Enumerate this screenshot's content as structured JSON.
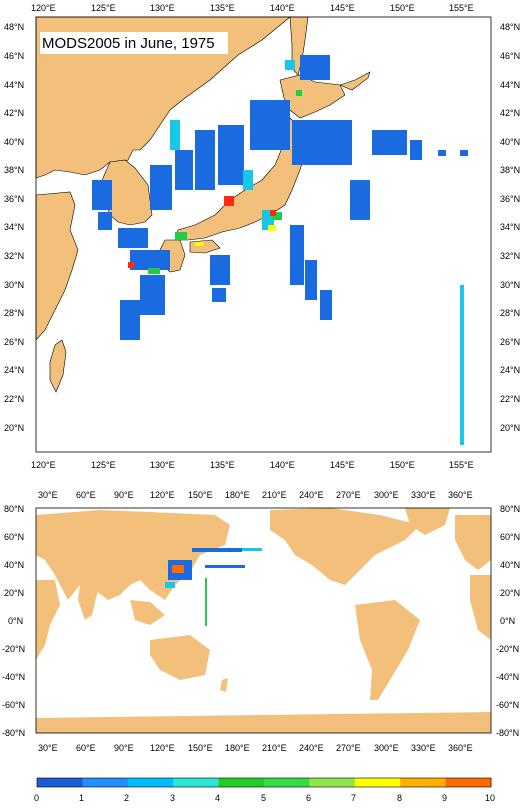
{
  "title": "MODS2005 in June, 1975",
  "regional_map": {
    "top_lon_labels": [
      "120°E",
      "125°E",
      "130°E",
      "135°E",
      "140°E",
      "145°E",
      "150°E",
      "155°E"
    ],
    "bottom_lon_labels": [
      "120°E",
      "125°E",
      "130°E",
      "135°E",
      "140°E",
      "145°E",
      "150°E",
      "155°E"
    ],
    "lat_labels": [
      "48°N",
      "46°N",
      "44°N",
      "42°N",
      "40°N",
      "38°N",
      "36°N",
      "34°N",
      "32°N",
      "30°N",
      "28°N",
      "26°N",
      "24°N",
      "22°N",
      "20°N"
    ]
  },
  "global_map": {
    "lon_labels": [
      "30°E",
      "60°E",
      "90°E",
      "120°E",
      "150°E",
      "180°E",
      "210°E",
      "240°E",
      "270°E",
      "300°E",
      "330°E",
      "360°E"
    ],
    "lat_labels": [
      "80°N",
      "60°N",
      "40°N",
      "20°N",
      "0°N",
      "-20°N",
      "-40°N",
      "-60°N",
      "-80°N"
    ]
  },
  "colorbar": {
    "labels": [
      "0",
      "1",
      "2",
      "3",
      "4",
      "5",
      "6",
      "7",
      "8",
      "9",
      "10"
    ],
    "colors": [
      "#1a5bd6",
      "#1e90ff",
      "#00bfff",
      "#2ee6d6",
      "#22cc22",
      "#33dd44",
      "#8ee84a",
      "#ffff00",
      "#ffb000",
      "#ff6a00",
      "#ff3010"
    ]
  },
  "colors": {
    "land": "#f2c07a",
    "ocean": "#ffffff",
    "obs_blue": "#1a6be0",
    "obs_cyan": "#18c6e6",
    "obs_green": "#22cc44",
    "obs_red": "#ff2a10"
  }
}
